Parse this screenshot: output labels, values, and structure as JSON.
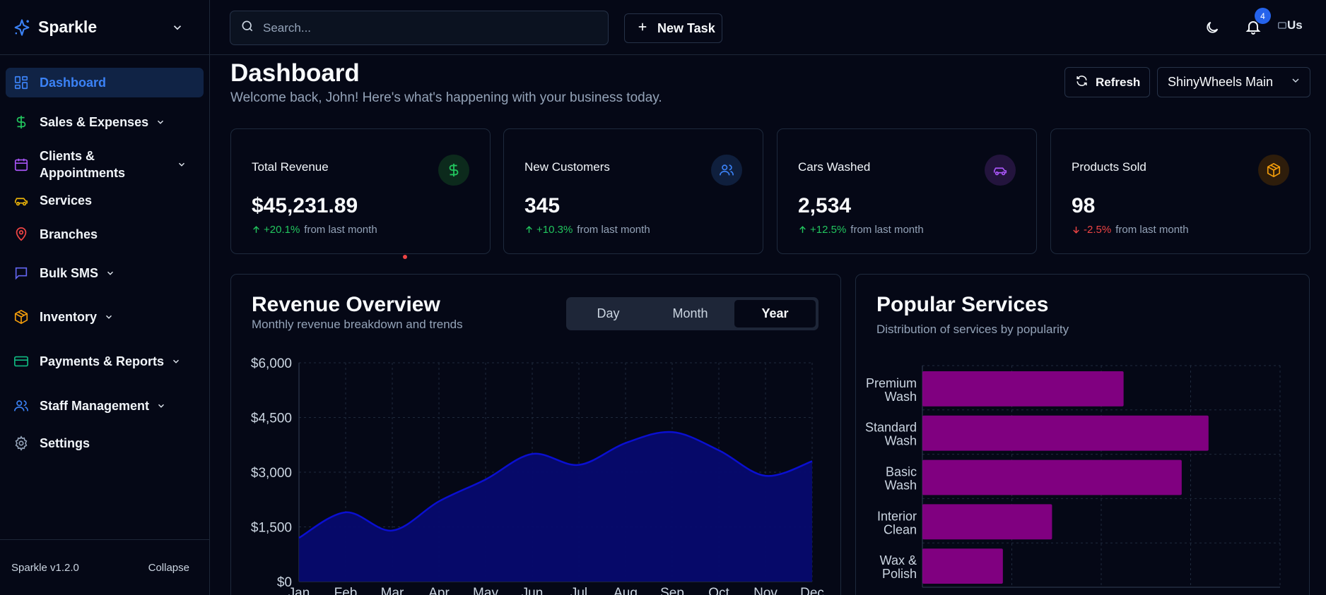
{
  "app": {
    "name": "Sparkle",
    "version": "Sparkle v1.2.0",
    "collapse_label": "Collapse"
  },
  "sidebar": {
    "items": [
      {
        "label": "Dashboard",
        "icon": "grid-icon",
        "active": true
      },
      {
        "label": "Sales & Expenses",
        "icon": "dollar-icon"
      },
      {
        "label": "Clients & Appointments",
        "icon": "calendar-icon"
      },
      {
        "label": "Services",
        "icon": "car-icon"
      },
      {
        "label": "Branches",
        "icon": "map-pin-icon"
      },
      {
        "label": "Bulk SMS",
        "icon": "message-icon"
      },
      {
        "label": "Inventory",
        "icon": "box-icon"
      },
      {
        "label": "Payments & Reports",
        "icon": "credit-card-icon"
      },
      {
        "label": "Staff Management",
        "icon": "users-icon"
      },
      {
        "label": "Settings",
        "icon": "gear-icon"
      }
    ],
    "clients_line1": "Clients &",
    "clients_line2": "Appointments"
  },
  "topbar": {
    "search_placeholder": "Search...",
    "new_task_label": "New Task",
    "notification_count": "4",
    "avatar_alt": "Us"
  },
  "header": {
    "title": "Dashboard",
    "subtitle": "Welcome back, John! Here's what's happening with your business today.",
    "refresh_label": "Refresh",
    "branch_value": "ShinyWheels Main"
  },
  "stats": [
    {
      "title": "Total Revenue",
      "value": "$45,231.89",
      "change": "+20.1%",
      "suffix": "from last month",
      "trend": "up",
      "icon": "dollar-icon",
      "color": "#22c55e",
      "bg": "#0c2a1c"
    },
    {
      "title": "New Customers",
      "value": "345",
      "change": "+10.3%",
      "suffix": "from last month",
      "trend": "up",
      "icon": "users-icon",
      "color": "#3b82f6",
      "bg": "#0f1f3d"
    },
    {
      "title": "Cars Washed",
      "value": "2,534",
      "change": "+12.5%",
      "suffix": "from last month",
      "trend": "up",
      "icon": "car-icon",
      "color": "#a855f7",
      "bg": "#23143d"
    },
    {
      "title": "Products Sold",
      "value": "98",
      "change": "-2.5%",
      "suffix": "from last month",
      "trend": "down",
      "icon": "package-icon",
      "color": "#f59e0b",
      "bg": "#2e1d0b"
    }
  ],
  "revenue": {
    "title": "Revenue Overview",
    "subtitle": "Monthly revenue breakdown and trends",
    "periods": [
      "Day",
      "Month",
      "Year"
    ],
    "selected_period": "Year"
  },
  "popular": {
    "title": "Popular Services",
    "subtitle": "Distribution of services by popularity"
  },
  "chart_data": [
    {
      "type": "area",
      "categories": [
        "Jan",
        "Feb",
        "Mar",
        "Apr",
        "May",
        "Jun",
        "Jul",
        "Aug",
        "Sep",
        "Oct",
        "Nov",
        "Dec"
      ],
      "series": [
        {
          "values": [
            1200,
            1900,
            1400,
            2200,
            2800,
            3500,
            3200,
            3800,
            4100,
            3600,
            2900,
            3300
          ]
        }
      ],
      "yticks": [
        "$0",
        "$1,500",
        "$3,000",
        "$4,500",
        "$6,000"
      ],
      "ylim": [
        0,
        6000
      ],
      "grid": true,
      "color": "#0a0fd1",
      "fill": "#060a6e"
    },
    {
      "type": "bar",
      "orientation": "horizontal",
      "categories": [
        "Premium Wash",
        "Standard Wash",
        "Basic Wash",
        "Interior Clean",
        "Wax & Polish"
      ],
      "category_lines": [
        [
          "Premium",
          "Wash"
        ],
        [
          "Standard",
          "Wash"
        ],
        [
          "Basic",
          "Wash"
        ],
        [
          "Interior",
          "Clean"
        ],
        [
          "Wax &",
          "Polish"
        ]
      ],
      "values": [
        450,
        640,
        580,
        290,
        180
      ],
      "xlim": [
        0,
        800
      ],
      "grid": true,
      "color": "#800080"
    }
  ]
}
